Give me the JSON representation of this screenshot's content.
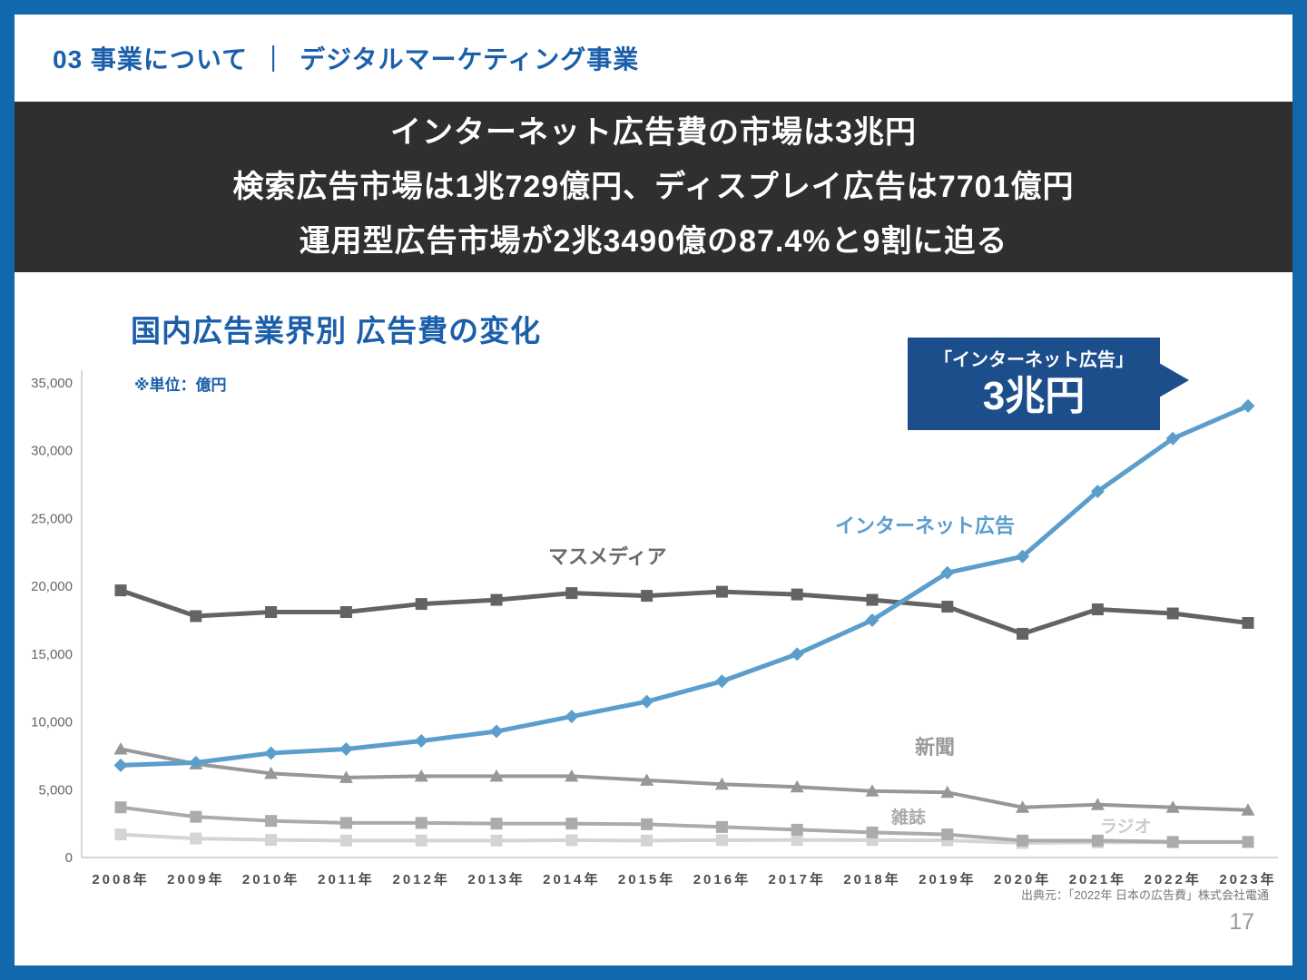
{
  "header": {
    "section": "03 事業について",
    "divider": "｜",
    "subtitle": "デジタルマーケティング事業"
  },
  "banner": {
    "line1": "インターネット広告費の市場は3兆円",
    "line2": "検索広告市場は1兆729億円、ディスプレイ広告は7701億円",
    "line3": "運用型広告市場が2兆3490億の87.4%と9割に迫る"
  },
  "chart": {
    "title": "国内広告業界別 広告費の変化",
    "unit_label": "※単位：億円"
  },
  "callout": {
    "line1": "「インターネット広告」",
    "line2": "3兆円"
  },
  "footer": {
    "source": "出典元：「2022年 日本の広告費」株式会社電通",
    "page_number": "17"
  },
  "colors": {
    "frame_blue": "#1168ad",
    "heading_blue": "#1b5faa",
    "banner_bg": "#2f2f2f",
    "callout_bg": "#1d4e8c",
    "internet_blue": "#5b9ecb"
  },
  "chart_data": {
    "type": "line",
    "title": "国内広告業界別 広告費の変化",
    "ylabel": "億円",
    "ylim": [
      0,
      35000
    ],
    "yticks": [
      0,
      5000,
      10000,
      15000,
      20000,
      25000,
      30000,
      35000
    ],
    "grid": false,
    "legend_position": "inline-labels",
    "x": [
      "2008年",
      "2009年",
      "2010年",
      "2011年",
      "2012年",
      "2013年",
      "2014年",
      "2015年",
      "2016年",
      "2017年",
      "2018年",
      "2019年",
      "2020年",
      "2021年",
      "2022年",
      "2023年"
    ],
    "series": [
      {
        "key": "internet",
        "name": "インターネット広告",
        "color": "#5b9ecb",
        "marker": "diamond",
        "stroke_width": 5,
        "values": [
          6800,
          7000,
          7700,
          8000,
          8600,
          9300,
          10400,
          11500,
          13000,
          15000,
          17500,
          21000,
          22200,
          27000,
          30900,
          33300
        ]
      },
      {
        "key": "mass-media",
        "name": "マスメディア",
        "color": "#636363",
        "marker": "square",
        "stroke_width": 5,
        "values": [
          19700,
          17800,
          18100,
          18100,
          18700,
          19000,
          19500,
          19300,
          19600,
          19400,
          19000,
          18500,
          16500,
          18300,
          18000,
          17300
        ]
      },
      {
        "key": "newspaper",
        "name": "新聞",
        "color": "#979797",
        "marker": "triangle",
        "stroke_width": 4,
        "values": [
          8000,
          6900,
          6200,
          5900,
          6000,
          6000,
          6000,
          5700,
          5400,
          5200,
          4900,
          4800,
          3700,
          3900,
          3700,
          3500
        ]
      },
      {
        "key": "magazine",
        "name": "雑誌",
        "color": "#ababab",
        "marker": "square",
        "stroke_width": 4,
        "values": [
          3700,
          3000,
          2700,
          2550,
          2550,
          2500,
          2500,
          2450,
          2250,
          2050,
          1850,
          1700,
          1250,
          1250,
          1150,
          1150
        ]
      },
      {
        "key": "radio",
        "name": "ラジオ",
        "color": "#d4d4d4",
        "marker": "square",
        "stroke_width": 4,
        "values": [
          1700,
          1400,
          1300,
          1250,
          1250,
          1250,
          1270,
          1250,
          1280,
          1290,
          1280,
          1260,
          1070,
          1110,
          1130,
          1140
        ]
      }
    ]
  }
}
